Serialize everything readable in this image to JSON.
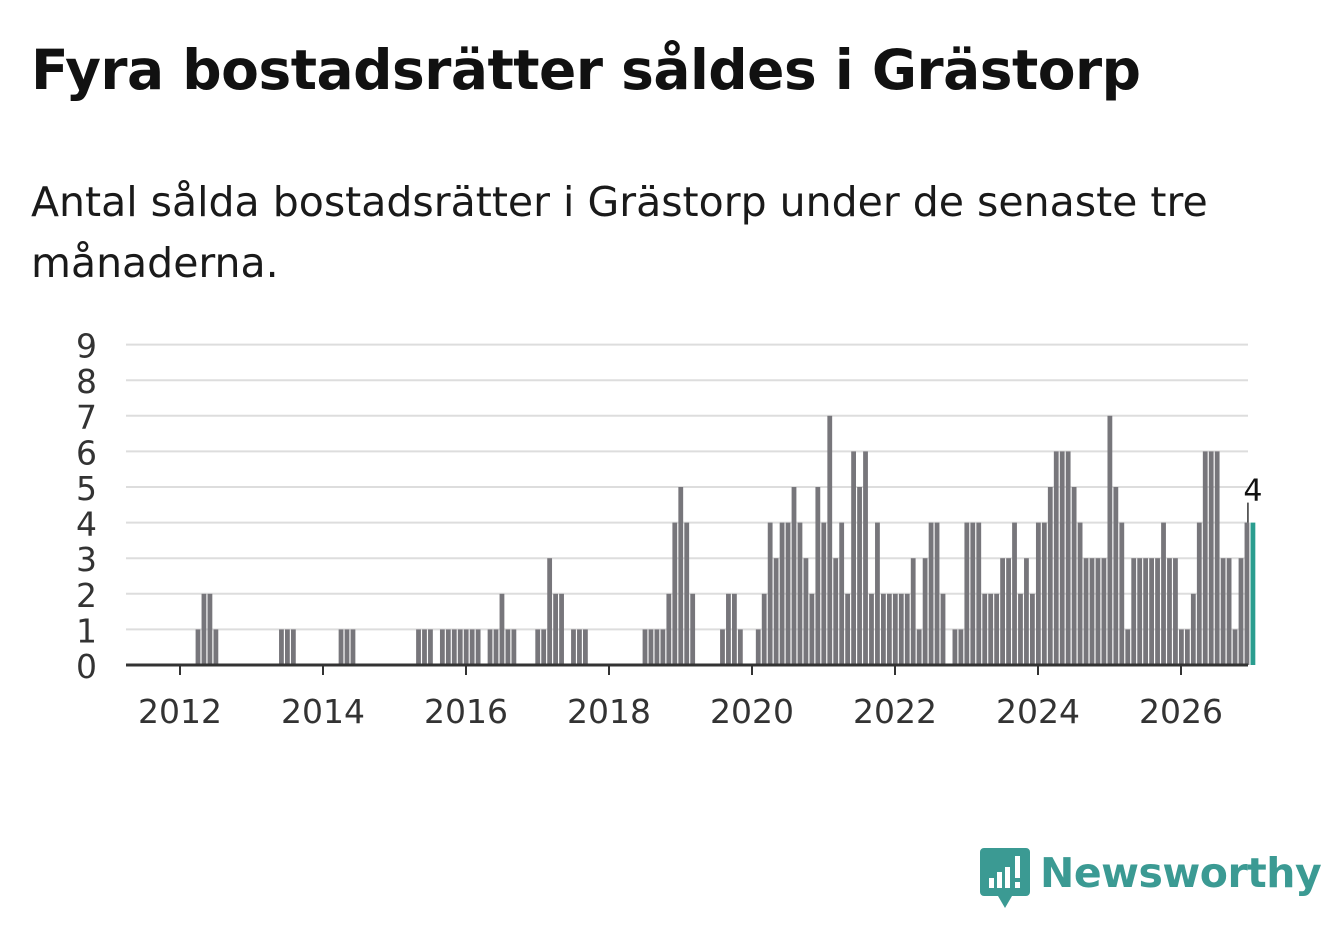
{
  "title": "Fyra bostadsrätter såldes i Grästorp",
  "subtitle": "Antal sålda bostadsrätter i Grästorp under de senaste tre månaderna.",
  "brand": {
    "name": "Newsworthy",
    "icon": "newsworthy-bar-chart-speech-bubble-icon"
  },
  "colors": {
    "bar": "#77767b",
    "highlight": "#2a9d8f",
    "grid": "#dddddd",
    "axis": "#333333",
    "brand": "#3b9a93"
  },
  "chart_data": {
    "type": "bar",
    "title": "Fyra bostadsrätter såldes i Grästorp",
    "xlabel": "",
    "ylabel": "",
    "ylim": [
      0,
      9
    ],
    "yticks": [
      0,
      1,
      2,
      3,
      4,
      5,
      6,
      7,
      8,
      9
    ],
    "x_ticks": [
      "2012",
      "2014",
      "2016",
      "2018",
      "2020",
      "2022",
      "2024",
      "2026"
    ],
    "period": "rolling three months, monthly steps",
    "start_month": "2011-08",
    "values": [
      0,
      0,
      0,
      0,
      0,
      0,
      0,
      0,
      0,
      1,
      2,
      2,
      1,
      0,
      0,
      0,
      0,
      0,
      0,
      0,
      0,
      0,
      0,
      1,
      1,
      1,
      0,
      0,
      0,
      0,
      0,
      0,
      0,
      1,
      1,
      1,
      0,
      0,
      0,
      0,
      0,
      0,
      0,
      0,
      0,
      0,
      1,
      1,
      1,
      0,
      1,
      1,
      1,
      1,
      1,
      1,
      1,
      0,
      1,
      1,
      2,
      1,
      1,
      0,
      0,
      0,
      1,
      1,
      3,
      2,
      2,
      0,
      1,
      1,
      1,
      0,
      0,
      0,
      0,
      0,
      0,
      0,
      0,
      0,
      1,
      1,
      1,
      1,
      2,
      4,
      5,
      4,
      2,
      0,
      0,
      0,
      0,
      1,
      2,
      2,
      1,
      0,
      0,
      1,
      2,
      4,
      3,
      4,
      4,
      5,
      4,
      3,
      2,
      5,
      4,
      7,
      3,
      4,
      2,
      6,
      5,
      6,
      2,
      4,
      2,
      2,
      2,
      2,
      2,
      3,
      1,
      3,
      4,
      4,
      2,
      0,
      1,
      1,
      4,
      4,
      4,
      2,
      2,
      2,
      3,
      3,
      4,
      2,
      3,
      2,
      4,
      4,
      5,
      6,
      6,
      6,
      5,
      4,
      3,
      3,
      3,
      3,
      7,
      5,
      4,
      1,
      3,
      3,
      3,
      3,
      3,
      4,
      3,
      3,
      1,
      1,
      2,
      4,
      6,
      6,
      6,
      3,
      3,
      1,
      3,
      4,
      4
    ],
    "highlight_last": true,
    "data_labels": [
      {
        "label": "4",
        "value": 4,
        "position": "last bar"
      }
    ]
  }
}
